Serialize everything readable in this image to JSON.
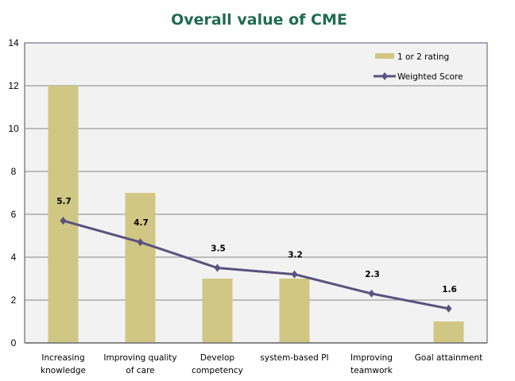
{
  "chart_data": {
    "type": "bar",
    "title": "Overall value of CME",
    "xlabel": "",
    "ylabel": "",
    "ylim": [
      0,
      14
    ],
    "yticks": [
      0,
      2,
      4,
      6,
      8,
      10,
      12,
      14
    ],
    "grid": true,
    "legend_position": "top-right",
    "categories": [
      [
        "Increasing",
        "knowledge"
      ],
      [
        "Improving quality",
        "of care"
      ],
      [
        "Develop",
        "competency"
      ],
      [
        "system-based PI"
      ],
      [
        "Improving",
        "teamwork"
      ],
      [
        "Goal attainment"
      ]
    ],
    "series": [
      {
        "name": "1 or 2 rating",
        "type": "bar",
        "color": "#d1c784",
        "values": [
          12,
          7,
          3,
          3,
          0,
          1
        ]
      },
      {
        "name": "Weighted Score",
        "type": "line",
        "color": "#5b5280",
        "values": [
          5.7,
          4.7,
          3.5,
          3.2,
          2.3,
          1.6
        ],
        "data_labels": [
          "5.7",
          "4.7",
          "3.5",
          "3.2",
          "2.3",
          "1.6"
        ]
      }
    ],
    "plot_background": "#f2f2f2",
    "gridline_color": "#868686",
    "axis_border_color": "#5b5280",
    "title_color": "#1f6b52"
  }
}
